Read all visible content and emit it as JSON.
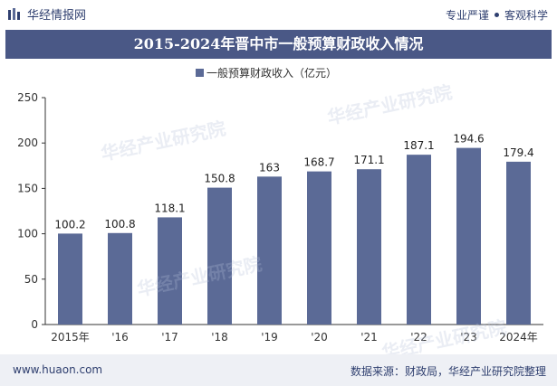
{
  "header": {
    "brand": "华经情报网",
    "slogan_left": "专业严谨",
    "slogan_right": "客观科学"
  },
  "watermark": "华经产业研究院",
  "footer": {
    "site": "www.huaon.com",
    "source": "数据来源：财政局，华经产业研究院整理"
  },
  "colors": {
    "bar": "#5b6a96",
    "title_bg": "#4a5886",
    "text": "#2f3f6f"
  },
  "chart_data": {
    "type": "bar",
    "title": "2015-2024年晋中市一般预算财政收入情况",
    "xlabel": "",
    "ylabel": "",
    "categories": [
      "2015年",
      "'16",
      "'17",
      "'18",
      "'19",
      "'20",
      "'21",
      "'22",
      "'23",
      "2024年"
    ],
    "series": [
      {
        "name": "一般预算财政收入（亿元）",
        "values": [
          100.2,
          100.8,
          118.1,
          150.8,
          163,
          168.7,
          171.1,
          187.1,
          194.6,
          179.4
        ]
      }
    ],
    "data_labels": [
      "100.2",
      "100.8",
      "118.1",
      "150.8",
      "163",
      "168.7",
      "171.1",
      "187.1",
      "194.6",
      "179.4"
    ],
    "ylim": [
      0,
      250
    ],
    "yticks": [
      0,
      50,
      100,
      150,
      200,
      250
    ],
    "grid": false,
    "legend": "top-center"
  }
}
